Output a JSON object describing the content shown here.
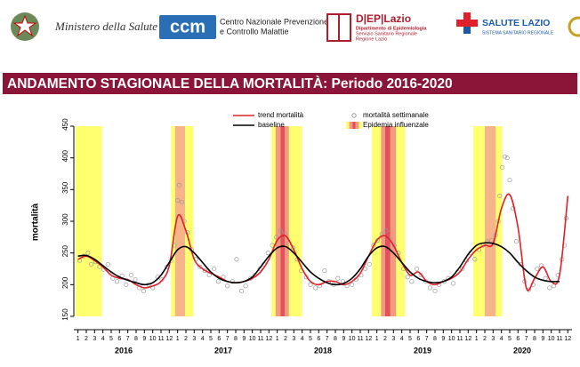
{
  "header": {
    "ministry": "Ministero della Salute",
    "ccm_logo": "ccm",
    "ccm_line1": "Centro Nazionale Prevenzione",
    "ccm_line2": "e Controllo Malattie",
    "dep_logo": "D|EP|Lazio",
    "dep_line1": "Dipartimento di Epidemiologia",
    "dep_line2": "Servizio Sanitario Regionale",
    "dep_line3": "Regione Lazio",
    "salute": "SALUTE LAZIO",
    "salute_sub": "SISTEMA SANITARIO REGIONALE"
  },
  "title": "ANDAMENTO STAGIONALE DELLA MORTALITÀ: Periodo 2016-2020",
  "chart_data": {
    "type": "line",
    "ylabel": "mortalità",
    "ylim": [
      150,
      450
    ],
    "yticks": [
      150,
      200,
      250,
      300,
      350,
      400,
      450
    ],
    "xlim": [
      0.5,
      60.5
    ],
    "xticks": [
      {
        "value": 1,
        "label": "1"
      },
      {
        "value": 2,
        "label": "2"
      },
      {
        "value": 3,
        "label": "3"
      },
      {
        "value": 4,
        "label": "4"
      },
      {
        "value": 5,
        "label": "5"
      },
      {
        "value": 6,
        "label": "6"
      },
      {
        "value": 7,
        "label": "7"
      },
      {
        "value": 8,
        "label": "8"
      },
      {
        "value": 9,
        "label": "9"
      },
      {
        "value": 10,
        "label": "10"
      },
      {
        "value": 11,
        "label": "11"
      },
      {
        "value": 12,
        "label": "12"
      },
      {
        "value": 13,
        "label": "1"
      },
      {
        "value": 14,
        "label": "2"
      },
      {
        "value": 15,
        "label": "3"
      },
      {
        "value": 16,
        "label": "4"
      },
      {
        "value": 17,
        "label": "5"
      },
      {
        "value": 18,
        "label": "6"
      },
      {
        "value": 19,
        "label": "7"
      },
      {
        "value": 20,
        "label": "8"
      },
      {
        "value": 21,
        "label": "9"
      },
      {
        "value": 22,
        "label": "10"
      },
      {
        "value": 23,
        "label": "11"
      },
      {
        "value": 24,
        "label": "12"
      },
      {
        "value": 25,
        "label": "1"
      },
      {
        "value": 26,
        "label": "2"
      },
      {
        "value": 27,
        "label": "3"
      },
      {
        "value": 28,
        "label": "4"
      },
      {
        "value": 29,
        "label": "5"
      },
      {
        "value": 30,
        "label": "6"
      },
      {
        "value": 31,
        "label": "7"
      },
      {
        "value": 32,
        "label": "8"
      },
      {
        "value": 33,
        "label": "9"
      },
      {
        "value": 34,
        "label": "10"
      },
      {
        "value": 35,
        "label": "11"
      },
      {
        "value": 36,
        "label": "12"
      },
      {
        "value": 37,
        "label": "1"
      },
      {
        "value": 38,
        "label": "2"
      },
      {
        "value": 39,
        "label": "3"
      },
      {
        "value": 40,
        "label": "4"
      },
      {
        "value": 41,
        "label": "5"
      },
      {
        "value": 42,
        "label": "6"
      },
      {
        "value": 43,
        "label": "7"
      },
      {
        "value": 44,
        "label": "8"
      },
      {
        "value": 45,
        "label": "9"
      },
      {
        "value": 46,
        "label": "10"
      },
      {
        "value": 47,
        "label": "11"
      },
      {
        "value": 48,
        "label": "12"
      },
      {
        "value": 49,
        "label": "1"
      },
      {
        "value": 50,
        "label": "2"
      },
      {
        "value": 51,
        "label": "3"
      },
      {
        "value": 52,
        "label": "4"
      },
      {
        "value": 53,
        "label": "5"
      },
      {
        "value": 54,
        "label": "6"
      },
      {
        "value": 55,
        "label": "7"
      },
      {
        "value": 56,
        "label": "8"
      },
      {
        "value": 57,
        "label": "9"
      },
      {
        "value": 58,
        "label": "10"
      },
      {
        "value": 59,
        "label": "11"
      },
      {
        "value": 60,
        "label": "12"
      }
    ],
    "years": [
      "2016",
      "2017",
      "2018",
      "2019",
      "2020"
    ],
    "x": [
      1,
      2,
      3,
      4,
      5,
      6,
      7,
      8,
      9,
      10,
      11,
      12,
      13,
      14,
      15,
      16,
      17,
      18,
      19,
      20,
      21,
      22,
      23,
      24,
      25,
      26,
      27,
      28,
      29,
      30,
      31,
      32,
      33,
      34,
      35,
      36,
      37,
      38,
      39,
      40,
      41,
      42,
      43,
      44,
      45,
      46,
      47,
      48,
      49,
      50,
      51,
      52,
      53,
      54,
      55,
      56,
      57,
      58,
      59,
      60
    ],
    "series": [
      {
        "name": "trend mortalità",
        "color": "#e0202a",
        "values": [
          240,
          245,
          238,
          228,
          215,
          210,
          208,
          200,
          195,
          198,
          205,
          230,
          308,
          285,
          240,
          225,
          218,
          212,
          205,
          203,
          205,
          210,
          220,
          240,
          270,
          277,
          255,
          225,
          205,
          200,
          205,
          205,
          200,
          205,
          218,
          245,
          270,
          277,
          262,
          235,
          215,
          220,
          205,
          200,
          205,
          210,
          220,
          240,
          255,
          262,
          265,
          320,
          342,
          290,
          195,
          210,
          228,
          205,
          215,
          340
        ]
      },
      {
        "name": "baseline",
        "color": "#000000",
        "values": [
          245,
          246,
          240,
          230,
          220,
          212,
          207,
          203,
          200,
          203,
          215,
          235,
          255,
          260,
          250,
          235,
          220,
          210,
          205,
          203,
          205,
          212,
          228,
          245,
          258,
          260,
          250,
          235,
          220,
          210,
          203,
          200,
          202,
          210,
          225,
          245,
          258,
          260,
          250,
          235,
          220,
          210,
          205,
          203,
          205,
          212,
          228,
          248,
          262,
          266,
          265,
          260,
          250,
          235,
          222,
          212,
          207,
          205,
          205,
          null
        ]
      }
    ],
    "points": {
      "name": "mortalità settimanale",
      "color": "#999999",
      "x": [
        1.2,
        1.7,
        2.2,
        2.6,
        3.1,
        3.6,
        4.1,
        4.6,
        5.2,
        5.7,
        6.3,
        6.8,
        7.4,
        7.9,
        8.4,
        8.9,
        9.5,
        10,
        10.6,
        11.1,
        11.7,
        12.2,
        12.6,
        13,
        13.2,
        13.5,
        13.8,
        14.2,
        14.7,
        15.2,
        15.7,
        16.3,
        16.8,
        17.4,
        17.9,
        18.5,
        19,
        19.6,
        20.1,
        20.7,
        21.2,
        21.8,
        22.3,
        22.9,
        23.4,
        23.9,
        24.4,
        24.9,
        25.4,
        25.9,
        26.4,
        26.9,
        27.4,
        27.9,
        28.5,
        29,
        29.6,
        30.1,
        30.7,
        31.2,
        31.8,
        32.3,
        32.9,
        33.4,
        34,
        34.5,
        35.1,
        35.6,
        36.1,
        36.6,
        37.1,
        37.6,
        38.1,
        38.6,
        39.1,
        39.6,
        40.2,
        40.7,
        41.2,
        41.8,
        42.3,
        42.9,
        43.4,
        44,
        44.5,
        45.1,
        45.6,
        46.2,
        46.7,
        47.3,
        47.8,
        48.3,
        48.8,
        49.3,
        49.8,
        50.3,
        50.8,
        51.3,
        51.6,
        51.8,
        52.1,
        52.4,
        52.7,
        53,
        53.4,
        53.8,
        54.3,
        54.8,
        55.3,
        55.8,
        56.3,
        56.8,
        57.3,
        57.8,
        58.3,
        58.8,
        59.3,
        59.6,
        59.8
      ],
      "values": [
        238,
        245,
        250,
        232,
        236,
        228,
        224,
        232,
        210,
        205,
        214,
        200,
        215,
        208,
        195,
        190,
        200,
        195,
        212,
        208,
        228,
        238,
        262,
        333,
        357,
        330,
        300,
        282,
        255,
        240,
        228,
        222,
        215,
        225,
        205,
        212,
        198,
        205,
        240,
        190,
        198,
        210,
        215,
        225,
        232,
        250,
        262,
        275,
        285,
        280,
        265,
        258,
        240,
        222,
        212,
        200,
        195,
        198,
        222,
        205,
        200,
        210,
        205,
        198,
        200,
        208,
        215,
        225,
        232,
        262,
        270,
        280,
        285,
        272,
        262,
        250,
        225,
        212,
        205,
        225,
        215,
        205,
        195,
        190,
        200,
        205,
        210,
        202,
        220,
        225,
        238,
        250,
        240,
        255,
        262,
        268,
        270,
        278,
        300,
        340,
        385,
        402,
        400,
        365,
        320,
        268,
        232,
        205,
        192,
        200,
        225,
        230,
        210,
        195,
        198,
        215,
        240,
        262,
        305
      ]
    },
    "epidemic": {
      "name": "Epidemia influenzale",
      "bands": [
        {
          "start": 0.7,
          "end": 3.9,
          "color": "#ffff70"
        },
        {
          "start": 12.2,
          "end": 14.9,
          "color": "#ffff70"
        },
        {
          "start": 24.3,
          "end": 28.0,
          "color": "#ffff70"
        },
        {
          "start": 36.4,
          "end": 40.4,
          "color": "#ffff70"
        },
        {
          "start": 48.6,
          "end": 52.1,
          "color": "#ffff70"
        },
        {
          "start": 12.7,
          "end": 13.9,
          "color": "#f7b48a"
        },
        {
          "start": 24.8,
          "end": 26.4,
          "color": "#f29a80"
        },
        {
          "start": 25.4,
          "end": 25.9,
          "color": "#e2505c"
        },
        {
          "start": 37.5,
          "end": 39.3,
          "color": "#f29a80"
        },
        {
          "start": 38.0,
          "end": 38.6,
          "color": "#e2505c"
        },
        {
          "start": 50.0,
          "end": 51.3,
          "color": "#f7b48a"
        }
      ]
    }
  }
}
